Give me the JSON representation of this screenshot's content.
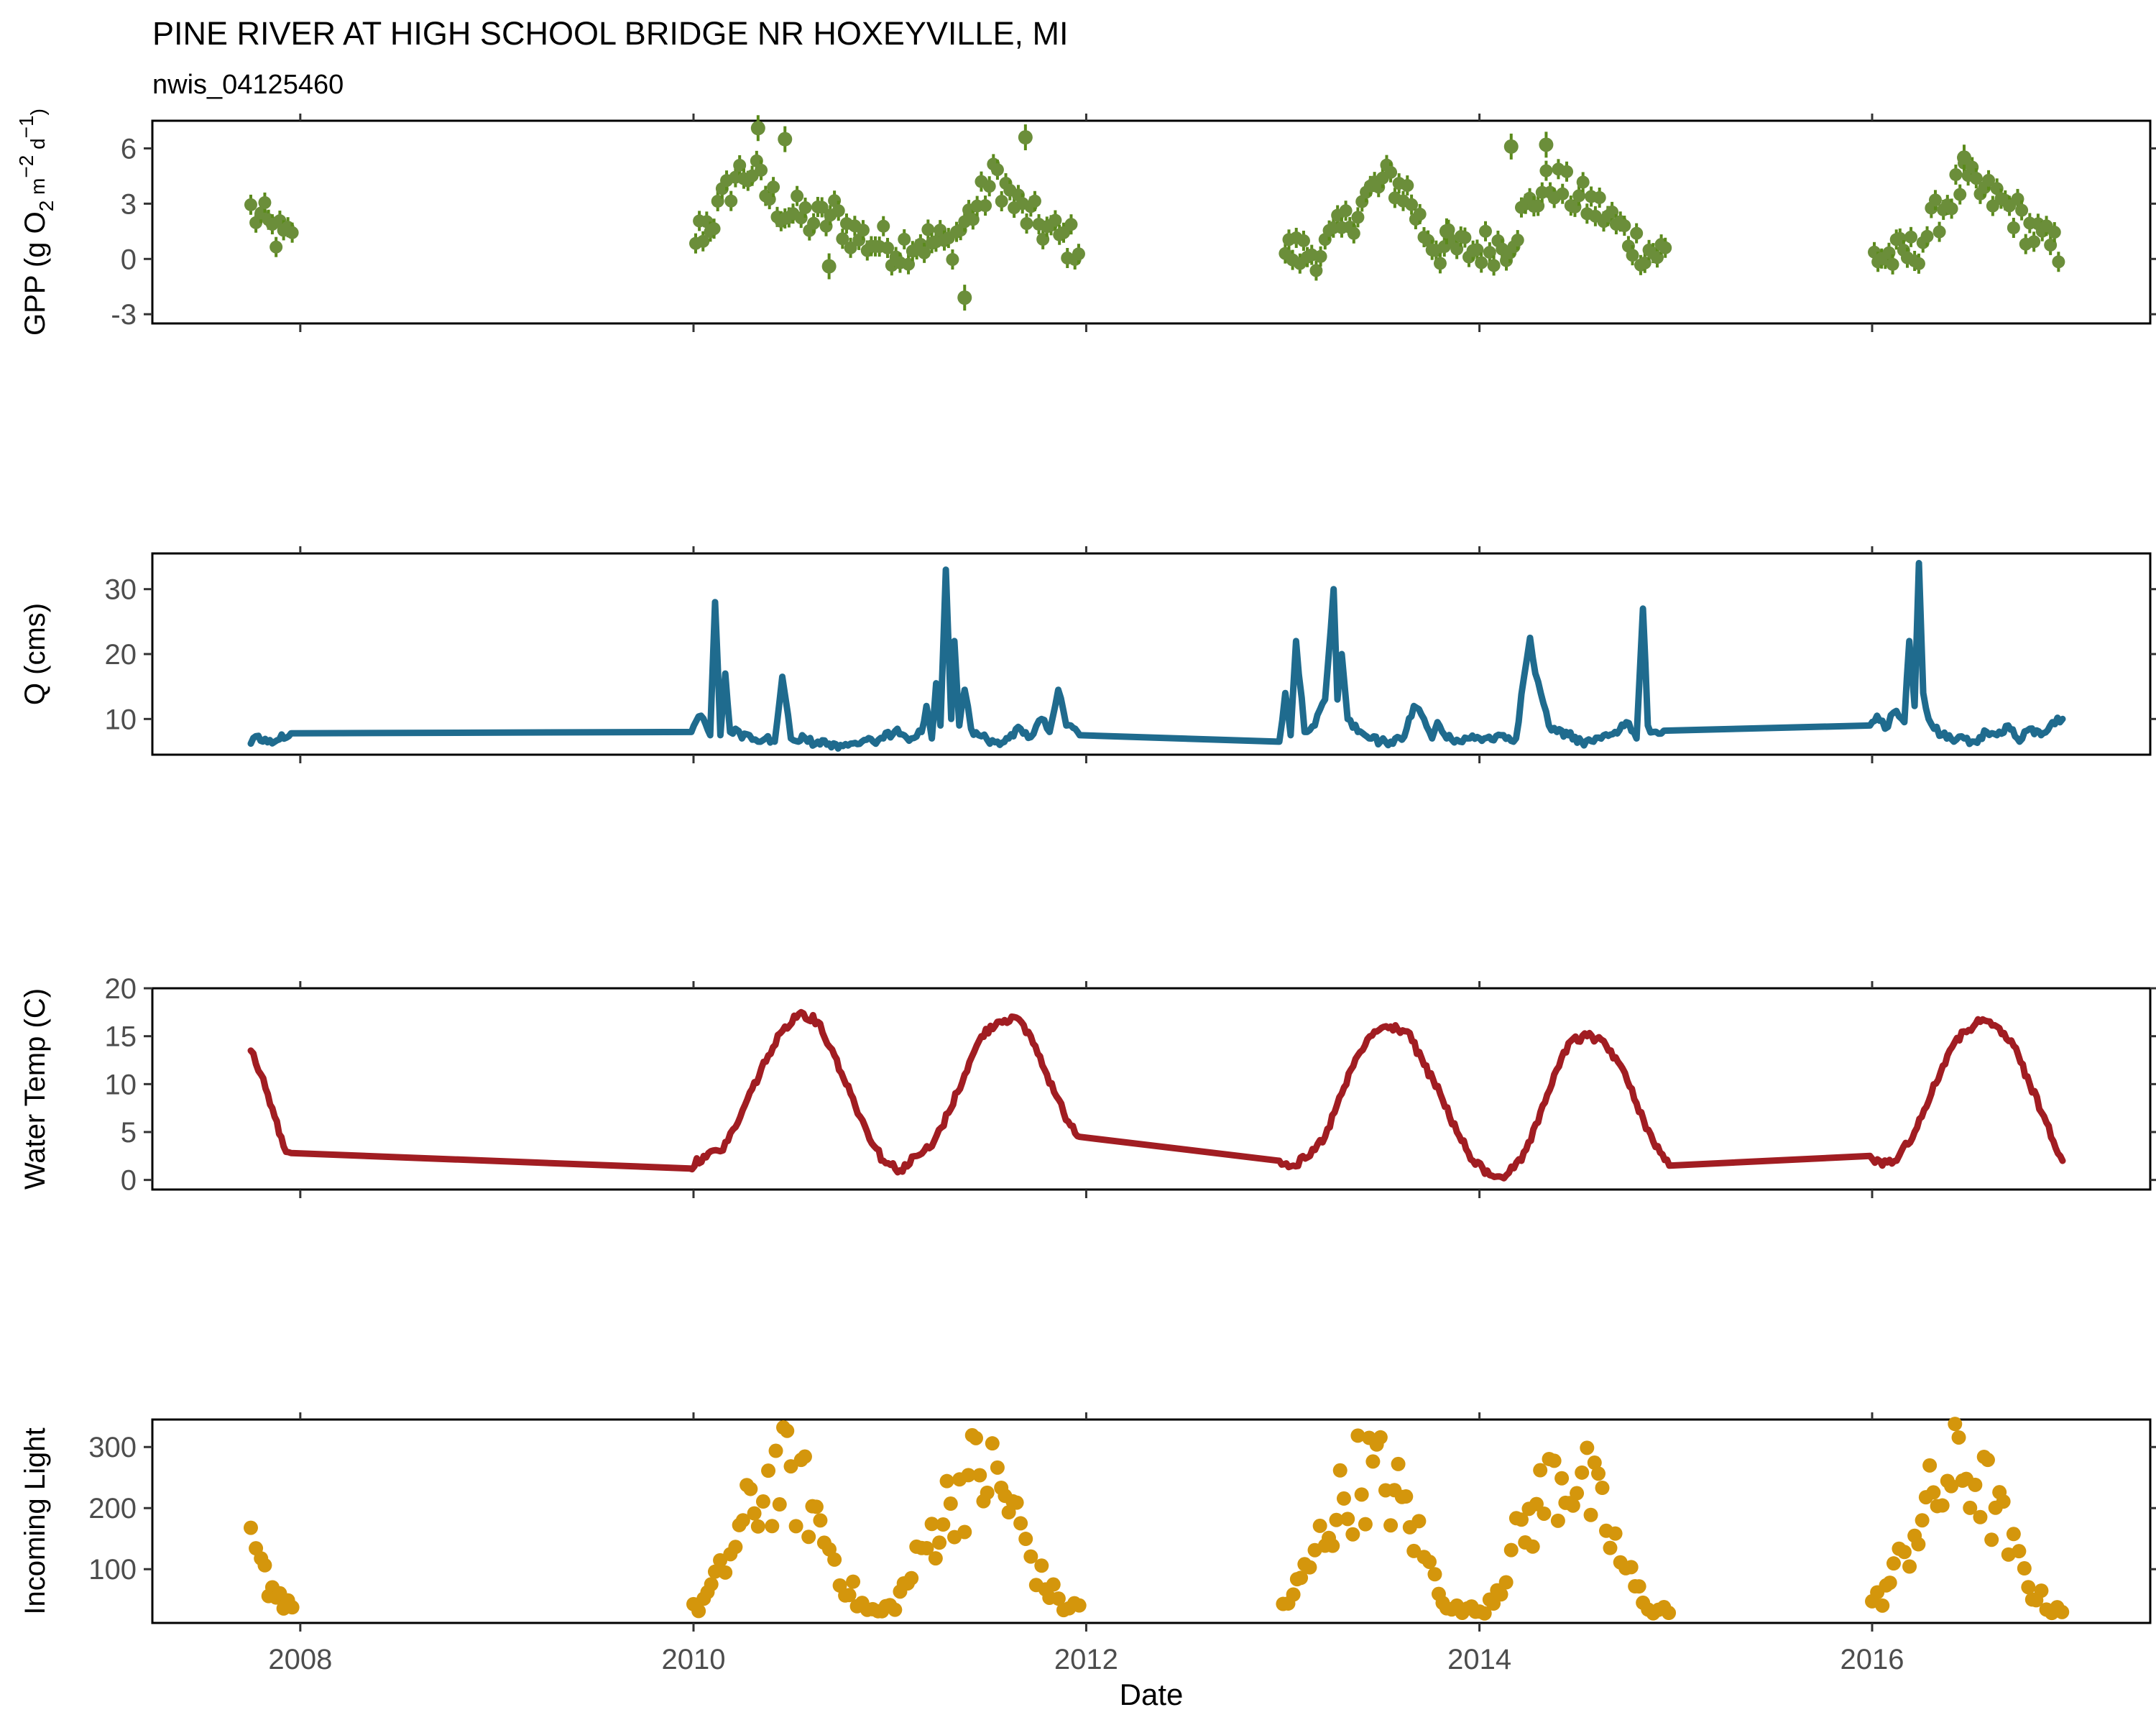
{
  "figure": {
    "title": "PINE RIVER AT HIGH SCHOOL BRIDGE NR HOXEYVILLE, MI",
    "subtitle": "nwis_04125460",
    "xlabel": "Date",
    "x_ticks": [
      "2008",
      "2010",
      "2012",
      "2014",
      "2016"
    ]
  },
  "chart_data": [
    {
      "type": "scatter",
      "name": "gpp",
      "ylabel": "GPP (g  O2 m-2 d-1)",
      "ylabel_parts": {
        "a": "GPP (g  O",
        "sub": "2",
        "b": " m",
        "sup1": "−2",
        "c": " d",
        "sup2": "−1",
        "d": ")"
      },
      "ylim": [
        -3.5,
        7.5
      ],
      "y_ticks": [
        "6",
        "3",
        "0",
        "-3"
      ],
      "y_tick_values": [
        6,
        3,
        0,
        -3
      ],
      "color": "#5a8a1a",
      "fill_color": "#6b8e3a",
      "error_bars": true,
      "segments": [
        {
          "x": [
            "2007-10-01",
            "2007-10-20",
            "2007-11-10",
            "2007-12-01",
            "2007-12-25"
          ],
          "y": [
            2.6,
            2.2,
            1.5,
            1.1,
            0.8
          ]
        },
        {
          "x": [
            "2010-01-05",
            "2010-02-15",
            "2010-03-20",
            "2010-04-20",
            "2010-05-15",
            "2010-06-20",
            "2010-07-20",
            "2010-08-20",
            "2010-09-20",
            "2010-10-20",
            "2010-11-20",
            "2010-12-20",
            "2011-01-20",
            "2011-02-20",
            "2011-03-20",
            "2011-04-20",
            "2011-05-20",
            "2011-06-20",
            "2011-07-20",
            "2011-08-20",
            "2011-09-20",
            "2011-10-20",
            "2011-11-20",
            "2011-12-25"
          ],
          "y": [
            1.2,
            2.5,
            4.5,
            4.8,
            3.6,
            2.6,
            2.3,
            2.0,
            2.4,
            1.5,
            1.0,
            0.8,
            0.6,
            1.0,
            0.9,
            0.7,
            2.0,
            3.2,
            4.6,
            3.0,
            2.2,
            1.6,
            1.0,
            0.8
          ]
        },
        {
          "x": [
            "2013-01-05",
            "2013-02-15",
            "2013-03-20",
            "2013-04-20",
            "2013-05-20",
            "2013-06-20",
            "2013-07-20",
            "2013-08-20",
            "2013-09-20",
            "2013-10-20",
            "2013-11-20",
            "2013-12-20",
            "2014-01-20",
            "2014-02-20",
            "2014-03-20",
            "2014-04-20",
            "2014-05-20",
            "2014-06-20",
            "2014-07-20",
            "2014-08-20",
            "2014-09-20",
            "2014-10-20",
            "2014-11-20",
            "2014-12-20"
          ],
          "y": [
            0.4,
            0.3,
            0.6,
            1.5,
            2.8,
            3.8,
            4.3,
            3.6,
            1.5,
            0.6,
            0.5,
            0.5,
            0.7,
            0.8,
            2.2,
            3.5,
            4.2,
            3.5,
            3.0,
            2.5,
            1.6,
            0.8,
            0.4,
            0.3
          ]
        },
        {
          "x": [
            "2016-01-05",
            "2016-02-15",
            "2016-03-20",
            "2016-04-20",
            "2016-05-20",
            "2016-06-20",
            "2016-07-20",
            "2016-08-20",
            "2016-09-20",
            "2016-10-20",
            "2016-11-20",
            "2016-12-20"
          ],
          "y": [
            0.2,
            0.1,
            0.4,
            1.8,
            3.2,
            4.2,
            3.6,
            3.2,
            2.6,
            1.6,
            0.8,
            0.4
          ]
        }
      ],
      "outliers": [
        {
          "x": "2010-05-01",
          "y": 7.1
        },
        {
          "x": "2010-06-20",
          "y": 6.5
        },
        {
          "x": "2011-09-10",
          "y": 6.6
        },
        {
          "x": "2011-05-20",
          "y": -2.1
        },
        {
          "x": "2010-09-10",
          "y": -0.4
        },
        {
          "x": "2014-03-01",
          "y": 6.1
        },
        {
          "x": "2014-05-05",
          "y": 6.2
        },
        {
          "x": "2016-06-20",
          "y": 5.5
        },
        {
          "x": "2013-11-01",
          "y": 1.5
        }
      ]
    },
    {
      "type": "line",
      "name": "q",
      "ylabel": "Q (cms)",
      "ylim": [
        4.5,
        35.5
      ],
      "y_ticks": [
        "30",
        "20",
        "10"
      ],
      "y_tick_values": [
        30,
        20,
        10
      ],
      "color": "#1f6b8e",
      "x": [
        "2007-10-01",
        "2007-10-15",
        "2007-11-01",
        "2007-12-15",
        "2009-12-28",
        "2010-01-15",
        "2010-02-01",
        "2010-02-10",
        "2010-02-20",
        "2010-03-01",
        "2010-03-10",
        "2010-03-20",
        "2010-04-01",
        "2010-04-15",
        "2010-05-01",
        "2010-05-15",
        "2010-06-01",
        "2010-06-15",
        "2010-07-01",
        "2010-07-15",
        "2010-07-22",
        "2010-08-01",
        "2010-08-20",
        "2010-09-10",
        "2010-10-01",
        "2010-10-20",
        "2010-11-10",
        "2010-12-01",
        "2010-12-20",
        "2011-01-15",
        "2011-02-10",
        "2011-03-01",
        "2011-03-10",
        "2011-03-20",
        "2011-03-28",
        "2011-04-05",
        "2011-04-15",
        "2011-04-25",
        "2011-05-01",
        "2011-05-10",
        "2011-05-20",
        "2011-06-01",
        "2011-06-15",
        "2011-07-01",
        "2011-07-20",
        "2011-08-10",
        "2011-09-01",
        "2011-09-20",
        "2011-10-10",
        "2011-10-25",
        "2011-11-10",
        "2011-11-25",
        "2011-12-20",
        "2012-12-25",
        "2013-01-05",
        "2013-01-15",
        "2013-01-25",
        "2013-02-10",
        "2013-03-01",
        "2013-03-20",
        "2013-04-05",
        "2013-04-12",
        "2013-04-20",
        "2013-05-01",
        "2013-05-20",
        "2013-06-10",
        "2013-07-01",
        "2013-07-20",
        "2013-08-10",
        "2013-09-01",
        "2013-09-20",
        "2013-10-05",
        "2013-10-15",
        "2013-11-01",
        "2013-11-20",
        "2013-12-10",
        "2014-01-10",
        "2014-02-10",
        "2014-03-10",
        "2014-03-25",
        "2014-04-05",
        "2014-04-15",
        "2014-04-25",
        "2014-05-10",
        "2014-05-25",
        "2014-06-15",
        "2014-07-10",
        "2014-08-01",
        "2014-08-20",
        "2014-09-10",
        "2014-10-01",
        "2014-10-20",
        "2014-11-01",
        "2014-11-10",
        "2014-11-20",
        "2014-12-10",
        "2015-12-28",
        "2016-01-10",
        "2016-01-25",
        "2016-02-10",
        "2016-03-01",
        "2016-03-10",
        "2016-03-20",
        "2016-03-28",
        "2016-04-05",
        "2016-04-15",
        "2016-04-25",
        "2016-05-10",
        "2016-06-01",
        "2016-06-20",
        "2016-07-10",
        "2016-08-01",
        "2016-08-20",
        "2016-09-10",
        "2016-10-01",
        "2016-10-20",
        "2016-11-10",
        "2016-12-01",
        "2016-12-20"
      ],
      "y": [
        6.2,
        7.4,
        6.4,
        7.8,
        8.0,
        10.5,
        7.5,
        28.0,
        7.5,
        17.0,
        8.0,
        8.5,
        7.0,
        7.5,
        6.5,
        7.0,
        6.5,
        16.5,
        7.0,
        6.5,
        7.5,
        6.5,
        6.5,
        6.2,
        6.0,
        6.2,
        6.5,
        6.5,
        7.0,
        8.5,
        7.0,
        8.0,
        12.0,
        7.0,
        15.5,
        9.0,
        33.0,
        10.0,
        22.0,
        9.0,
        14.5,
        8.5,
        7.5,
        6.8,
        6.5,
        7.0,
        8.5,
        7.2,
        10.0,
        8.0,
        14.5,
        9.0,
        7.5,
        6.5,
        14.0,
        7.5,
        22.0,
        8.0,
        9.0,
        13.0,
        30.0,
        13.0,
        20.0,
        10.0,
        8.0,
        7.0,
        6.5,
        6.5,
        6.8,
        12.0,
        10.0,
        7.0,
        9.5,
        7.0,
        6.8,
        7.0,
        7.0,
        7.5,
        7.0,
        16.5,
        22.5,
        17.0,
        14.0,
        9.0,
        8.0,
        7.5,
        6.5,
        6.5,
        7.5,
        8.0,
        9.5,
        7.0,
        27.0,
        9.0,
        8.0,
        8.2,
        9.0,
        10.5,
        8.5,
        11.0,
        9.5,
        22.0,
        12.0,
        34.0,
        14.0,
        10.0,
        8.5,
        7.5,
        6.5,
        7.0,
        6.5,
        8.0,
        7.5,
        9.0,
        6.5,
        8.5,
        7.5,
        9.5,
        10.0
      ]
    },
    {
      "type": "line",
      "name": "water-temp",
      "ylabel": "Water Temp (C)",
      "ylim": [
        -1,
        20
      ],
      "y_ticks": [
        "20",
        "15",
        "10",
        "5",
        "0"
      ],
      "y_tick_values": [
        20,
        15,
        10,
        5,
        0
      ],
      "color": "#a11d22",
      "x": [
        "2007-10-01",
        "2007-10-20",
        "2007-11-10",
        "2007-12-01",
        "2007-12-15",
        "2009-12-25",
        "2010-01-20",
        "2010-02-20",
        "2010-03-20",
        "2010-04-20",
        "2010-05-20",
        "2010-06-20",
        "2010-07-20",
        "2010-08-20",
        "2010-09-20",
        "2010-10-20",
        "2010-11-20",
        "2010-12-20",
        "2011-01-20",
        "2011-02-20",
        "2011-03-20",
        "2011-04-20",
        "2011-05-20",
        "2011-06-20",
        "2011-07-20",
        "2011-08-20",
        "2011-09-20",
        "2011-10-20",
        "2011-11-20",
        "2011-12-20",
        "2012-12-25",
        "2013-01-20",
        "2013-02-20",
        "2013-03-20",
        "2013-04-20",
        "2013-05-20",
        "2013-06-20",
        "2013-07-20",
        "2013-08-20",
        "2013-09-20",
        "2013-10-20",
        "2013-11-20",
        "2013-12-20",
        "2014-01-20",
        "2014-02-20",
        "2014-03-20",
        "2014-04-20",
        "2014-05-20",
        "2014-06-20",
        "2014-07-20",
        "2014-08-20",
        "2014-09-20",
        "2014-10-20",
        "2014-11-20",
        "2014-12-20",
        "2015-12-28",
        "2016-01-20",
        "2016-02-20",
        "2016-03-20",
        "2016-04-20",
        "2016-05-20",
        "2016-06-20",
        "2016-07-20",
        "2016-08-20",
        "2016-09-20",
        "2016-10-20",
        "2016-11-20",
        "2016-12-20"
      ],
      "y": [
        13.5,
        11.0,
        7.5,
        3.5,
        2.8,
        1.2,
        2.5,
        3.0,
        5.5,
        9.5,
        13.0,
        16.0,
        17.5,
        16.5,
        13.0,
        9.0,
        5.0,
        2.0,
        1.0,
        2.5,
        3.5,
        7.0,
        11.0,
        15.0,
        16.5,
        17.0,
        15.0,
        11.0,
        7.0,
        4.5,
        2.0,
        1.5,
        2.5,
        4.5,
        9.0,
        13.0,
        15.5,
        16.0,
        15.5,
        12.0,
        9.0,
        5.0,
        2.0,
        0.5,
        0.5,
        2.0,
        6.0,
        11.0,
        14.5,
        15.0,
        14.5,
        12.0,
        8.0,
        4.0,
        1.5,
        2.5,
        1.5,
        2.5,
        5.0,
        9.0,
        13.0,
        15.5,
        16.5,
        16.0,
        14.0,
        10.0,
        6.0,
        2.0
      ]
    },
    {
      "type": "scatter",
      "name": "incoming-light",
      "ylabel": "Incoming Light",
      "ylim": [
        12,
        345
      ],
      "y_ticks": [
        "300",
        "200",
        "100"
      ],
      "y_tick_values": [
        300,
        200,
        100
      ],
      "color": "#d4960c",
      "segments": [
        {
          "x": [
            "2007-10-01",
            "2007-10-20",
            "2007-11-10",
            "2007-12-01",
            "2007-12-25"
          ],
          "y": [
            160,
            120,
            85,
            60,
            50
          ]
        },
        {
          "x": [
            "2010-01-01",
            "2010-01-20",
            "2010-02-10",
            "2010-03-01",
            "2010-03-20",
            "2010-04-10",
            "2010-05-01",
            "2010-05-20",
            "2010-06-10",
            "2010-07-01",
            "2010-07-20",
            "2010-08-10",
            "2010-09-01",
            "2010-09-20",
            "2010-10-10",
            "2010-11-01",
            "2010-11-20",
            "2010-12-10",
            "2011-01-01",
            "2011-01-20",
            "2011-02-10",
            "2011-03-01",
            "2011-03-20",
            "2011-04-10",
            "2011-05-01",
            "2011-05-20",
            "2011-06-10",
            "2011-07-01",
            "2011-07-20",
            "2011-08-10",
            "2011-09-01",
            "2011-09-20",
            "2011-10-10",
            "2011-11-01",
            "2011-11-20",
            "2011-12-10",
            "2011-12-28"
          ],
          "y": [
            40,
            60,
            90,
            130,
            180,
            220,
            260,
            290,
            310,
            300,
            280,
            240,
            190,
            140,
            100,
            60,
            40,
            35,
            45,
            70,
            110,
            150,
            190,
            230,
            270,
            290,
            310,
            310,
            290,
            250,
            200,
            150,
            100,
            70,
            50,
            45,
            50
          ]
        },
        {
          "x": [
            "2013-01-01",
            "2013-01-20",
            "2013-02-10",
            "2013-03-01",
            "2013-03-20",
            "2013-04-10",
            "2013-05-01",
            "2013-05-20",
            "2013-06-10",
            "2013-07-01",
            "2013-07-20",
            "2013-08-10",
            "2013-09-01",
            "2013-09-20",
            "2013-10-10",
            "2013-11-01",
            "2013-11-20",
            "2013-12-10",
            "2014-01-01",
            "2014-01-20",
            "2014-02-10",
            "2014-03-01",
            "2014-03-20",
            "2014-04-10",
            "2014-05-01",
            "2014-05-20",
            "2014-06-10",
            "2014-07-01",
            "2014-07-20",
            "2014-08-10",
            "2014-09-01",
            "2014-09-20",
            "2014-10-10",
            "2014-11-01",
            "2014-11-20",
            "2014-12-10",
            "2014-12-28"
          ],
          "y": [
            50,
            70,
            110,
            150,
            200,
            240,
            270,
            300,
            310,
            300,
            280,
            250,
            200,
            150,
            100,
            60,
            40,
            35,
            40,
            60,
            100,
            150,
            190,
            230,
            270,
            300,
            310,
            300,
            280,
            240,
            190,
            140,
            100,
            60,
            45,
            40,
            40
          ]
        },
        {
          "x": [
            "2016-01-01",
            "2016-01-20",
            "2016-02-10",
            "2016-03-01",
            "2016-03-20",
            "2016-04-10",
            "2016-05-01",
            "2016-05-20",
            "2016-06-10",
            "2016-07-01",
            "2016-07-20",
            "2016-08-10",
            "2016-09-01",
            "2016-09-20",
            "2016-10-10",
            "2016-11-01",
            "2016-11-20",
            "2016-12-10",
            "2016-12-28"
          ],
          "y": [
            50,
            70,
            110,
            150,
            200,
            240,
            270,
            300,
            320,
            310,
            290,
            250,
            200,
            150,
            110,
            70,
            50,
            45,
            50
          ]
        }
      ]
    }
  ]
}
